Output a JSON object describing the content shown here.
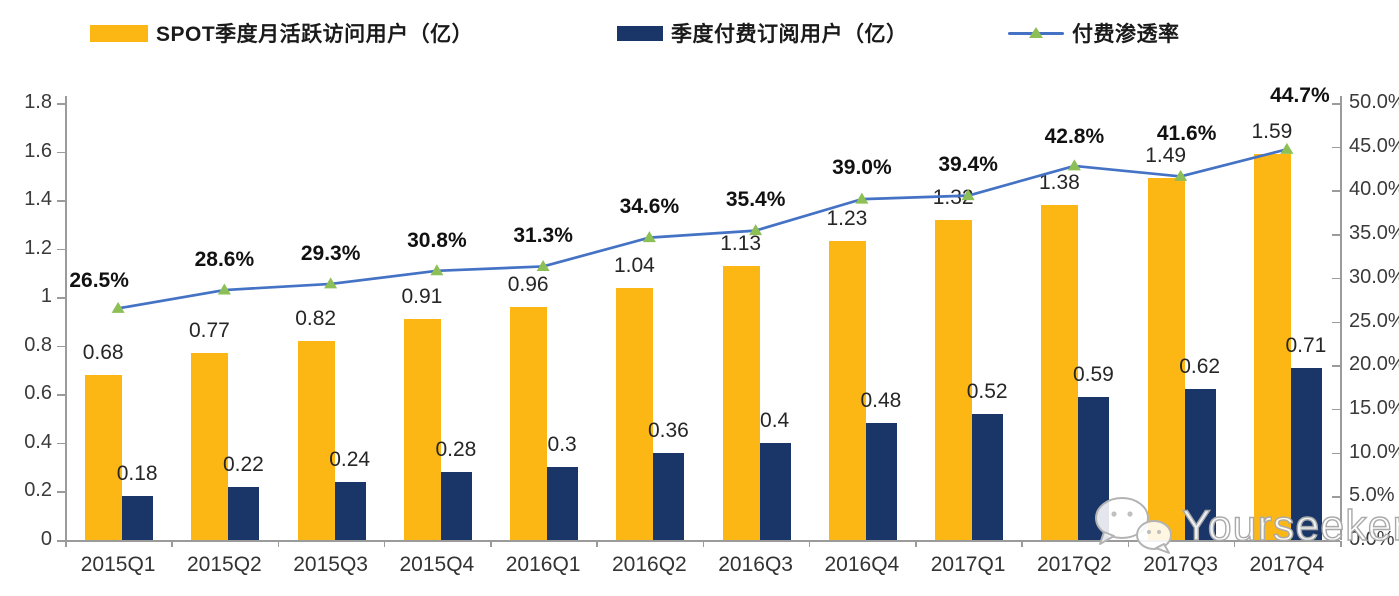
{
  "legend": [
    {
      "label": "SPOT季度月活跃访问用户（亿）",
      "color": "#FDB714",
      "type": "bar"
    },
    {
      "label": "季度付费订阅用户（亿）",
      "color": "#1A3668",
      "type": "bar"
    },
    {
      "label": "付费渗透率",
      "color": "#4472C4",
      "marker_color": "#8CBF55",
      "type": "line"
    }
  ],
  "watermark": {
    "text": "Yourseeker",
    "icon": "wechat-icon"
  },
  "chart_data": {
    "type": "bar",
    "subtype": "grouped-bar-with-line-combo",
    "categories": [
      "2015Q1",
      "2015Q2",
      "2015Q3",
      "2015Q4",
      "2016Q1",
      "2016Q2",
      "2016Q3",
      "2016Q4",
      "2017Q1",
      "2017Q2",
      "2017Q3",
      "2017Q4"
    ],
    "series": [
      {
        "name": "SPOT季度月活跃访问用户（亿）",
        "type": "bar",
        "axis": "left",
        "color": "#FDB714",
        "values": [
          0.68,
          0.77,
          0.82,
          0.91,
          0.96,
          1.04,
          1.13,
          1.23,
          1.32,
          1.38,
          1.49,
          1.59
        ],
        "labels": [
          "0.68",
          "0.77",
          "0.82",
          "0.91",
          "0.96",
          "1.04",
          "1.13",
          "1.23",
          "1.32",
          "1.38",
          "1.49",
          "1.59"
        ]
      },
      {
        "name": "季度付费订阅用户（亿）",
        "type": "bar",
        "axis": "left",
        "color": "#1A3668",
        "values": [
          0.18,
          0.22,
          0.24,
          0.28,
          0.3,
          0.36,
          0.4,
          0.48,
          0.52,
          0.59,
          0.62,
          0.71
        ],
        "labels": [
          "0.18",
          "0.22",
          "0.24",
          "0.28",
          "0.3",
          "0.36",
          "0.4",
          "0.48",
          "0.52",
          "0.59",
          "0.62",
          "0.71"
        ]
      },
      {
        "name": "付费渗透率",
        "type": "line",
        "axis": "right",
        "color": "#4472C4",
        "marker": "triangle-up",
        "marker_color": "#8CBF55",
        "values": [
          26.5,
          28.6,
          29.3,
          30.8,
          31.3,
          34.6,
          35.4,
          39.0,
          39.4,
          42.8,
          41.6,
          44.7
        ],
        "labels": [
          "26.5%",
          "28.6%",
          "29.3%",
          "30.8%",
          "31.3%",
          "34.6%",
          "35.4%",
          "39.0%",
          "39.4%",
          "42.8%",
          "41.6%",
          "44.7%"
        ]
      }
    ],
    "left_axis": {
      "min": 0,
      "max": 1.8,
      "tick_labels": [
        "0",
        "0.2",
        "0.4",
        "0.6",
        "0.8",
        "1",
        "1.2",
        "1.4",
        "1.6",
        "1.8"
      ]
    },
    "right_axis": {
      "min": 0,
      "max": 50,
      "tick_labels": [
        "0.0%",
        "5.0%",
        "10.0%",
        "15.0%",
        "20.0%",
        "25.0%",
        "30.0%",
        "35.0%",
        "40.0%",
        "45.0%",
        "50.0%"
      ]
    },
    "grid": false,
    "legend_position": "top",
    "title": ""
  }
}
